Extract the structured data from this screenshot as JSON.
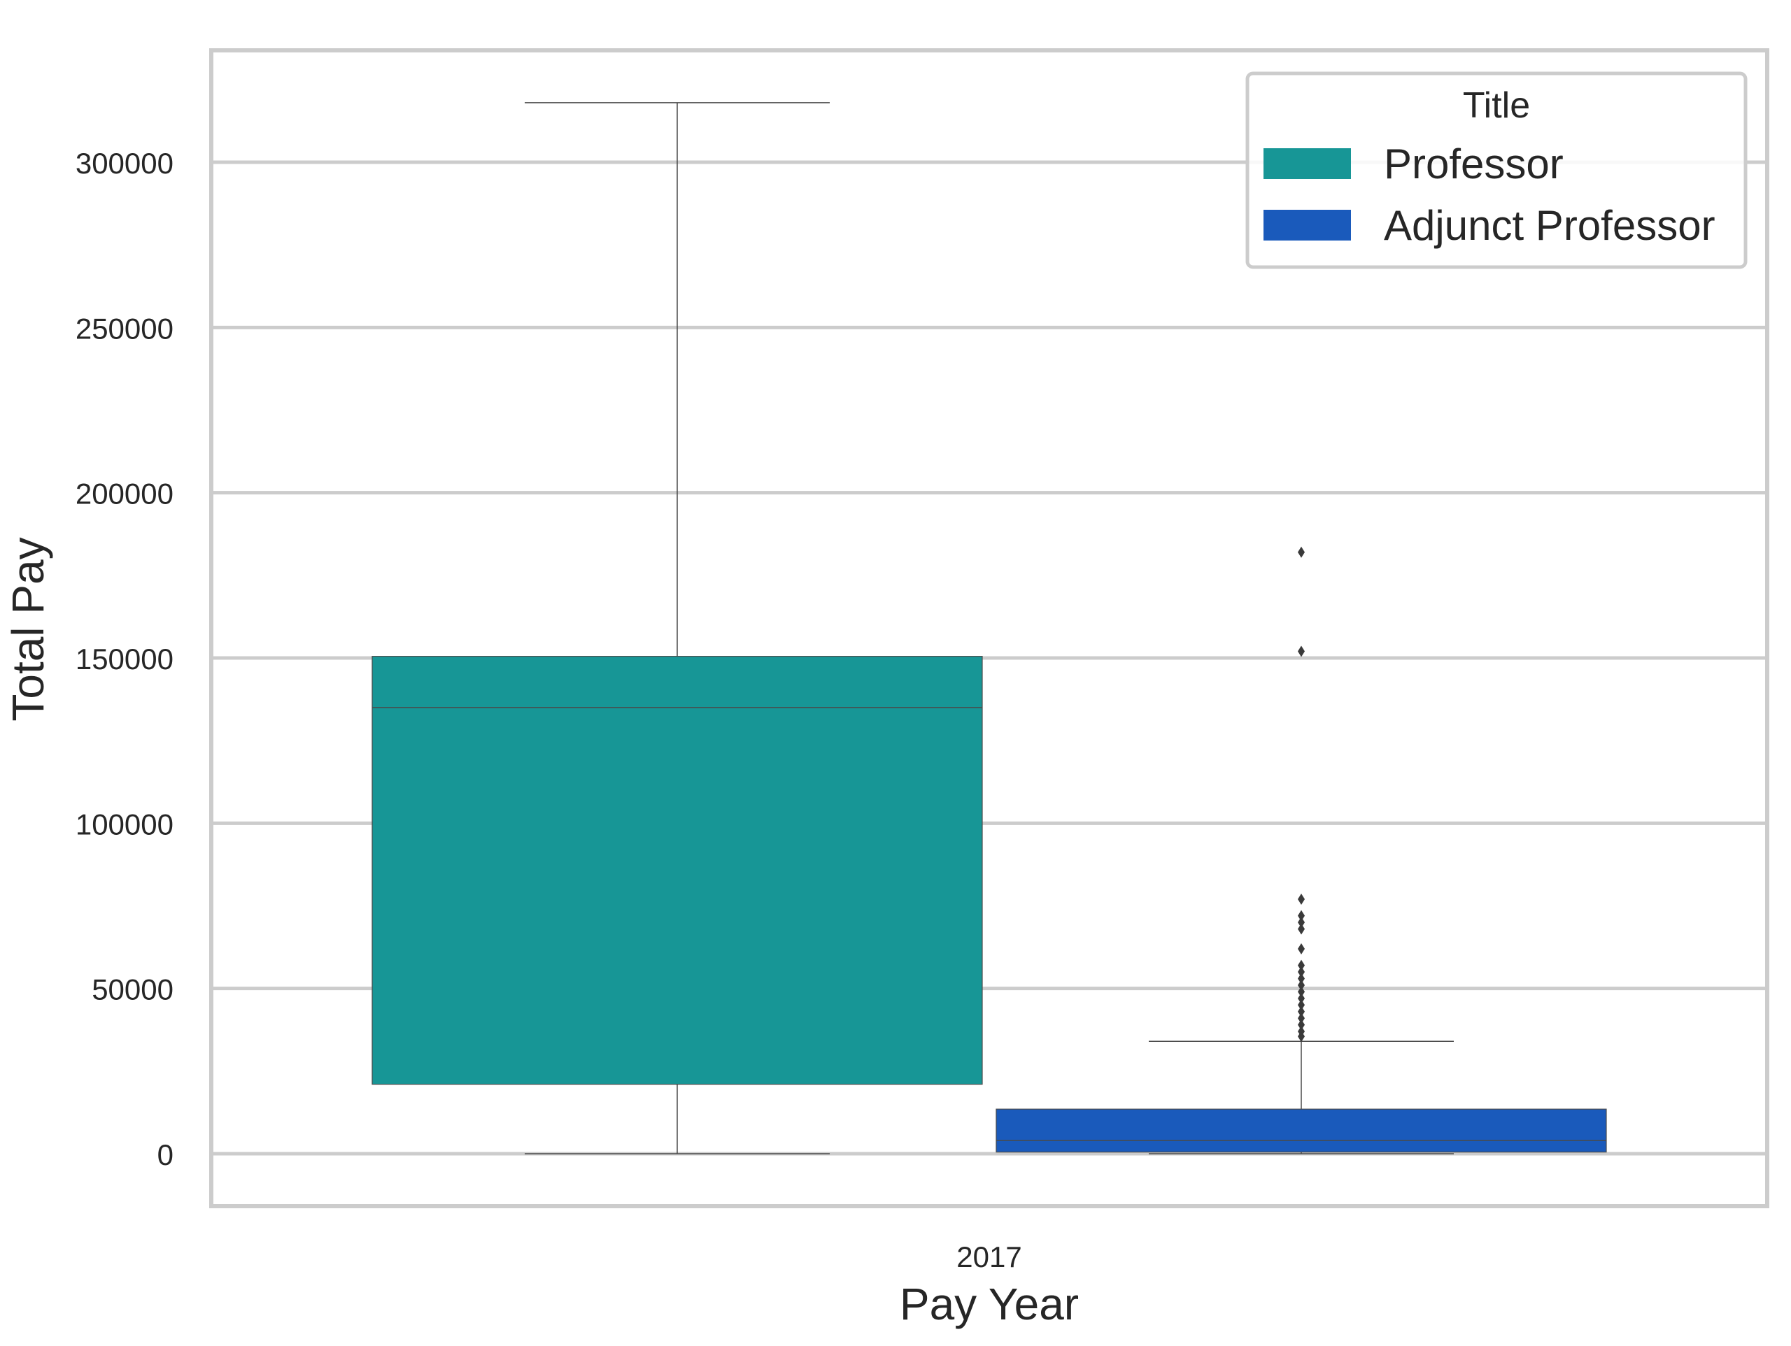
{
  "chart_data": {
    "type": "box",
    "title": "",
    "xlabel": "Pay Year",
    "ylabel": "Total Pay",
    "categories": [
      "2017"
    ],
    "ylim": [
      -16000,
      335000
    ],
    "yticks": [
      0,
      50000,
      100000,
      150000,
      200000,
      250000,
      300000
    ],
    "ytick_labels": [
      "0",
      "50000",
      "100000",
      "150000",
      "200000",
      "250000",
      "300000"
    ],
    "grid": true,
    "legend": {
      "title": "Title",
      "placement": "top-right",
      "entries": [
        "Professor",
        "Adjunct Professor"
      ]
    },
    "series": [
      {
        "name": "Professor",
        "color": "#179696",
        "boxes": [
          {
            "category": "2017",
            "whisker_low": 0,
            "q1": 21000,
            "median": 135000,
            "q3": 150500,
            "whisker_high": 318000,
            "outliers": []
          }
        ]
      },
      {
        "name": "Adjunct Professor",
        "color": "#1a5abb",
        "boxes": [
          {
            "category": "2017",
            "whisker_low": 0,
            "q1": 500,
            "median": 4000,
            "q3": 13500,
            "whisker_high": 34000,
            "outliers": [
              182000,
              152000,
              77000,
              72000,
              70000,
              68000,
              62000,
              57000,
              55000,
              53000,
              51000,
              49000,
              47000,
              45000,
              43000,
              41000,
              39000,
              37000,
              35500
            ]
          }
        ]
      }
    ]
  }
}
